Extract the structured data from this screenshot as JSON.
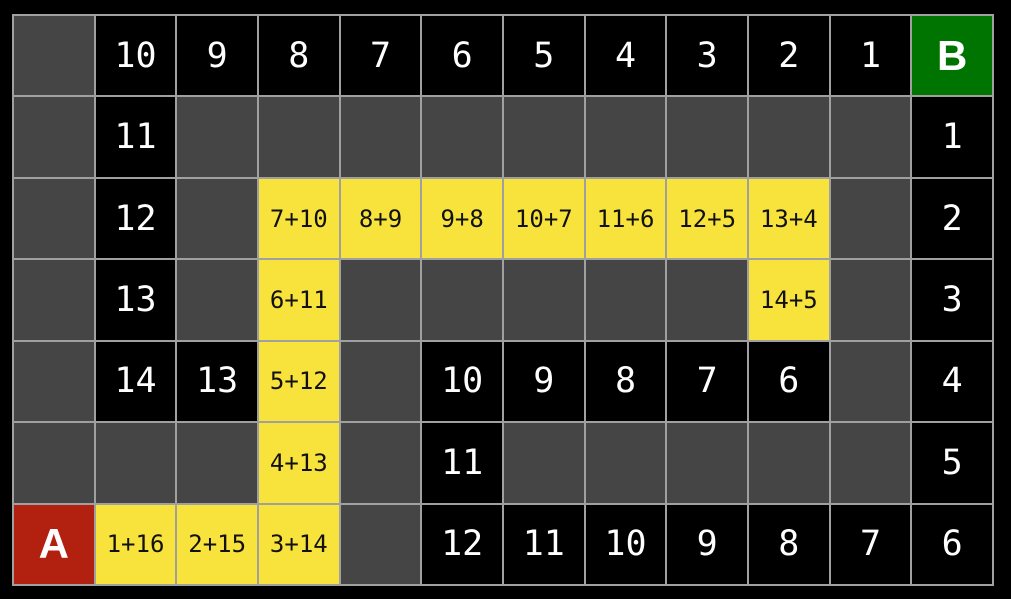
{
  "meta": {
    "description": "Pathfinding grid visualization with start A, goal B, distance numbers and explored path costs"
  },
  "colors": {
    "background": "#000000",
    "grid_line": "#a0a0a0",
    "empty_bg": "#454545",
    "number_bg": "#000000",
    "number_fg": "#ffffff",
    "path_bg": "#f8e23c",
    "path_fg": "#111111",
    "start_bg": "#b2200f",
    "goal_bg": "#007400"
  },
  "grid": {
    "cols": 12,
    "rows": 7,
    "cells": [
      [
        {
          "t": "empty",
          "v": ""
        },
        {
          "t": "num",
          "v": "10"
        },
        {
          "t": "num",
          "v": "9"
        },
        {
          "t": "num",
          "v": "8"
        },
        {
          "t": "num",
          "v": "7"
        },
        {
          "t": "num",
          "v": "6"
        },
        {
          "t": "num",
          "v": "5"
        },
        {
          "t": "num",
          "v": "4"
        },
        {
          "t": "num",
          "v": "3"
        },
        {
          "t": "num",
          "v": "2"
        },
        {
          "t": "num",
          "v": "1"
        },
        {
          "t": "goal",
          "v": "B"
        }
      ],
      [
        {
          "t": "empty",
          "v": ""
        },
        {
          "t": "num",
          "v": "11"
        },
        {
          "t": "empty",
          "v": ""
        },
        {
          "t": "empty",
          "v": ""
        },
        {
          "t": "empty",
          "v": ""
        },
        {
          "t": "empty",
          "v": ""
        },
        {
          "t": "empty",
          "v": ""
        },
        {
          "t": "empty",
          "v": ""
        },
        {
          "t": "empty",
          "v": ""
        },
        {
          "t": "empty",
          "v": ""
        },
        {
          "t": "empty",
          "v": ""
        },
        {
          "t": "num",
          "v": "1"
        }
      ],
      [
        {
          "t": "empty",
          "v": ""
        },
        {
          "t": "num",
          "v": "12"
        },
        {
          "t": "empty",
          "v": ""
        },
        {
          "t": "path",
          "v": "7+10"
        },
        {
          "t": "path",
          "v": "8+9"
        },
        {
          "t": "path",
          "v": "9+8"
        },
        {
          "t": "path",
          "v": "10+7"
        },
        {
          "t": "path",
          "v": "11+6"
        },
        {
          "t": "path",
          "v": "12+5"
        },
        {
          "t": "path",
          "v": "13+4"
        },
        {
          "t": "empty",
          "v": ""
        },
        {
          "t": "num",
          "v": "2"
        }
      ],
      [
        {
          "t": "empty",
          "v": ""
        },
        {
          "t": "num",
          "v": "13"
        },
        {
          "t": "empty",
          "v": ""
        },
        {
          "t": "path",
          "v": "6+11"
        },
        {
          "t": "empty",
          "v": ""
        },
        {
          "t": "empty",
          "v": ""
        },
        {
          "t": "empty",
          "v": ""
        },
        {
          "t": "empty",
          "v": ""
        },
        {
          "t": "empty",
          "v": ""
        },
        {
          "t": "path",
          "v": "14+5"
        },
        {
          "t": "empty",
          "v": ""
        },
        {
          "t": "num",
          "v": "3"
        }
      ],
      [
        {
          "t": "empty",
          "v": ""
        },
        {
          "t": "num",
          "v": "14"
        },
        {
          "t": "num",
          "v": "13"
        },
        {
          "t": "path",
          "v": "5+12"
        },
        {
          "t": "empty",
          "v": ""
        },
        {
          "t": "num",
          "v": "10"
        },
        {
          "t": "num",
          "v": "9"
        },
        {
          "t": "num",
          "v": "8"
        },
        {
          "t": "num",
          "v": "7"
        },
        {
          "t": "num",
          "v": "6"
        },
        {
          "t": "empty",
          "v": ""
        },
        {
          "t": "num",
          "v": "4"
        }
      ],
      [
        {
          "t": "empty",
          "v": ""
        },
        {
          "t": "empty",
          "v": ""
        },
        {
          "t": "empty",
          "v": ""
        },
        {
          "t": "path",
          "v": "4+13"
        },
        {
          "t": "empty",
          "v": ""
        },
        {
          "t": "num",
          "v": "11"
        },
        {
          "t": "empty",
          "v": ""
        },
        {
          "t": "empty",
          "v": ""
        },
        {
          "t": "empty",
          "v": ""
        },
        {
          "t": "empty",
          "v": ""
        },
        {
          "t": "empty",
          "v": ""
        },
        {
          "t": "num",
          "v": "5"
        }
      ],
      [
        {
          "t": "start",
          "v": "A"
        },
        {
          "t": "path",
          "v": "1+16"
        },
        {
          "t": "path",
          "v": "2+15"
        },
        {
          "t": "path",
          "v": "3+14"
        },
        {
          "t": "empty",
          "v": ""
        },
        {
          "t": "num",
          "v": "12"
        },
        {
          "t": "num",
          "v": "11"
        },
        {
          "t": "num",
          "v": "10"
        },
        {
          "t": "num",
          "v": "9"
        },
        {
          "t": "num",
          "v": "8"
        },
        {
          "t": "num",
          "v": "7"
        },
        {
          "t": "num",
          "v": "6"
        }
      ]
    ]
  }
}
